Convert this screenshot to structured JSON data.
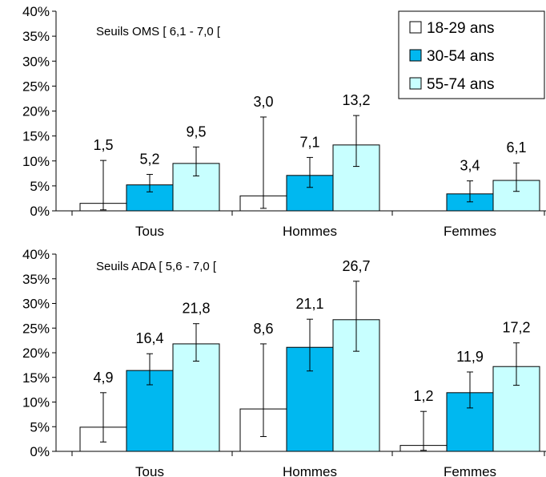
{
  "chart_data": [
    {
      "type": "bar",
      "annotation": "Seuils OMS [ 6,1 - 7,0 [",
      "categories": [
        "Tous",
        "Hommes",
        "Femmes"
      ],
      "ylim": [
        0,
        40
      ],
      "yticks": [
        "0%",
        "5%",
        "10%",
        "15%",
        "20%",
        "25%",
        "30%",
        "35%",
        "40%"
      ],
      "series": [
        {
          "name": "18-29 ans",
          "color": "#ffffff",
          "values": [
            1.5,
            3.0,
            null
          ],
          "labels": [
            "1,5",
            "3,0",
            ""
          ],
          "err_low": [
            0.2,
            0.5,
            null
          ],
          "err_high": [
            10.1,
            18.8,
            null
          ]
        },
        {
          "name": "30-54 ans",
          "color": "#00b8f0",
          "values": [
            5.2,
            7.1,
            3.4
          ],
          "labels": [
            "5,2",
            "7,1",
            "3,4"
          ],
          "err_low": [
            3.8,
            4.7,
            1.8
          ],
          "err_high": [
            7.3,
            10.7,
            6.0
          ]
        },
        {
          "name": "55-74 ans",
          "color": "#c8ffff",
          "values": [
            9.5,
            13.2,
            6.1
          ],
          "labels": [
            "9,5",
            "13,2",
            "6,1"
          ],
          "err_low": [
            7.0,
            8.9,
            3.9
          ],
          "err_high": [
            12.8,
            19.1,
            9.6
          ]
        }
      ],
      "legend": "top-right",
      "grid": false
    },
    {
      "type": "bar",
      "annotation": "Seuils ADA [ 5,6 - 7,0 [",
      "categories": [
        "Tous",
        "Hommes",
        "Femmes"
      ],
      "ylim": [
        0,
        40
      ],
      "yticks": [
        "0%",
        "5%",
        "10%",
        "15%",
        "20%",
        "25%",
        "30%",
        "35%",
        "40%"
      ],
      "series": [
        {
          "name": "18-29 ans",
          "color": "#ffffff",
          "values": [
            4.9,
            8.6,
            1.2
          ],
          "labels": [
            "4,9",
            "8,6",
            "1,2"
          ],
          "err_low": [
            1.9,
            3.0,
            0.2
          ],
          "err_high": [
            11.9,
            21.8,
            8.1
          ]
        },
        {
          "name": "30-54 ans",
          "color": "#00b8f0",
          "values": [
            16.4,
            21.1,
            11.9
          ],
          "labels": [
            "16,4",
            "21,1",
            "11,9"
          ],
          "err_low": [
            13.5,
            16.3,
            8.8
          ],
          "err_high": [
            19.8,
            26.8,
            16.1
          ]
        },
        {
          "name": "55-74 ans",
          "color": "#c8ffff",
          "values": [
            21.8,
            26.7,
            17.2
          ],
          "labels": [
            "21,8",
            "26,7",
            "17,2"
          ],
          "err_low": [
            18.3,
            20.3,
            13.4
          ],
          "err_high": [
            25.9,
            34.5,
            22.0
          ]
        }
      ],
      "legend": "none",
      "grid": false
    }
  ]
}
